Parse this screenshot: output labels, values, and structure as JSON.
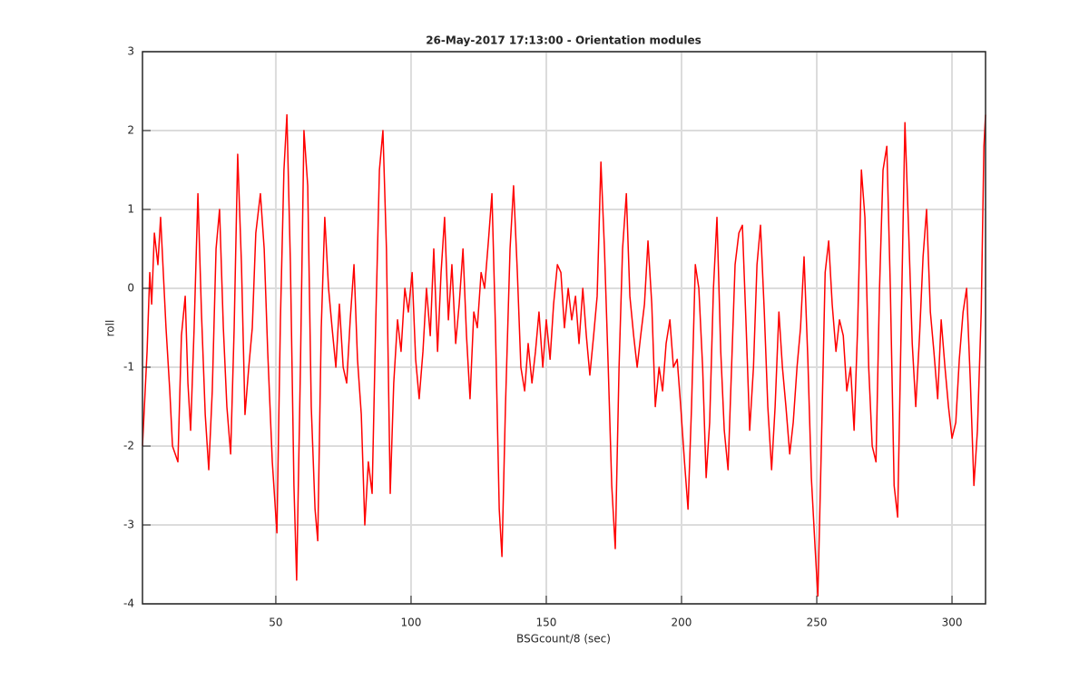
{
  "chart_data": {
    "type": "line",
    "title": "26-May-2017 17:13:00 - Orientation modules",
    "x_label": "BSGcount/8 (sec)",
    "y_label": "roll",
    "xlim": [
      0.7,
      312.4
    ],
    "ylim": [
      -4,
      3
    ],
    "xticks": [
      50,
      100,
      150,
      200,
      250,
      300
    ],
    "yticks": [
      -4,
      -3,
      -2,
      -1,
      0,
      1,
      2,
      3
    ],
    "grid": true,
    "x": [
      0.7,
      2.4,
      3.4,
      4.1,
      5.1,
      6.4,
      7.4,
      8.4,
      9.4,
      10.8,
      11.8,
      13.8,
      15.1,
      16.5,
      17.5,
      18.5,
      19.8,
      21.2,
      22.5,
      23.9,
      25.2,
      26.5,
      27.9,
      29.2,
      30.6,
      31.9,
      33.3,
      34.6,
      35.9,
      37.3,
      38.6,
      40,
      41.3,
      42.6,
      44.3,
      45.7,
      47,
      48.7,
      50.4,
      51.7,
      53,
      54.1,
      55.4,
      56.7,
      57.7,
      59.1,
      60.4,
      61.8,
      63.1,
      64.5,
      65.5,
      66.8,
      68.1,
      69.5,
      70.8,
      72.2,
      73.5,
      74.9,
      76.2,
      77.5,
      78.9,
      80.2,
      81.6,
      82.9,
      84.2,
      85.6,
      86.9,
      88.3,
      89.6,
      90.9,
      92.3,
      93.6,
      95,
      96.3,
      97.7,
      99,
      100.4,
      101.7,
      103,
      104.4,
      105.7,
      107.1,
      108.4,
      109.8,
      111.1,
      112.4,
      113.8,
      115.1,
      116.5,
      117.8,
      119.2,
      120.5,
      121.8,
      123.2,
      124.5,
      125.9,
      127.2,
      128.6,
      129.9,
      131.2,
      132.6,
      133.6,
      134.9,
      136.6,
      137.9,
      139.3,
      140.6,
      142,
      143.3,
      144.7,
      146,
      147.3,
      148.7,
      150,
      151.4,
      152.7,
      154.1,
      155.4,
      156.7,
      158.1,
      159.4,
      160.8,
      162.1,
      163.5,
      164.8,
      166.1,
      167.5,
      168.8,
      170.2,
      171.5,
      172.9,
      174.2,
      175.5,
      176.9,
      178.2,
      179.6,
      180.9,
      182.3,
      183.6,
      184.9,
      186.3,
      187.6,
      189,
      190.3,
      191.7,
      193,
      194.3,
      195.7,
      197,
      198.4,
      199.7,
      201.1,
      202.4,
      203.7,
      205.1,
      206.4,
      207.8,
      209.1,
      210.4,
      211.8,
      213.1,
      214.5,
      215.8,
      217.2,
      218.5,
      219.8,
      221.2,
      222.5,
      223.9,
      225.2,
      226.6,
      227.9,
      229.2,
      230.6,
      231.9,
      233.3,
      234.6,
      236,
      237.3,
      238.6,
      240,
      241.3,
      242.7,
      244,
      245.3,
      246.7,
      248,
      249.4,
      250.4,
      251.7,
      253.1,
      254.4,
      255.7,
      257.1,
      258.4,
      259.8,
      261.1,
      262.5,
      263.8,
      265.1,
      266.5,
      267.8,
      269.2,
      270.5,
      271.9,
      273.2,
      274.5,
      275.9,
      277.2,
      278.6,
      279.9,
      281.2,
      282.6,
      283.9,
      285.3,
      286.6,
      288,
      289.3,
      290.6,
      292,
      293.3,
      294.7,
      296,
      297.4,
      298.7,
      300,
      301.4,
      302.7,
      304.1,
      305.4,
      306.8,
      308.1,
      309.4,
      310.8,
      311.8,
      312.4
    ],
    "series": [
      {
        "name": "roll",
        "color": "#ff0000",
        "values": [
          -2,
          -0.8,
          0.2,
          -0.2,
          0.7,
          0.3,
          0.9,
          0.2,
          -0.5,
          -1.3,
          -2,
          -2.2,
          -0.6,
          -0.1,
          -1.2,
          -1.8,
          -0.5,
          1.2,
          -0.3,
          -1.6,
          -2.3,
          -1.3,
          0.5,
          1,
          -0.5,
          -1.5,
          -2.1,
          -0.5,
          1.7,
          0.3,
          -1.6,
          -1,
          -0.5,
          0.7,
          1.2,
          0.5,
          -0.8,
          -2.2,
          -3.1,
          -0.4,
          1.5,
          2.2,
          0.3,
          -2.5,
          -3.7,
          -1,
          2,
          1.3,
          -1.5,
          -2.8,
          -3.2,
          -0.5,
          0.9,
          0,
          -0.5,
          -1,
          -0.2,
          -1,
          -1.2,
          -0.4,
          0.3,
          -0.9,
          -1.6,
          -3,
          -2.2,
          -2.6,
          -0.5,
          1.5,
          2,
          0.5,
          -2.6,
          -1.2,
          -0.4,
          -0.8,
          0,
          -0.3,
          0.2,
          -0.9,
          -1.4,
          -0.8,
          0,
          -0.6,
          0.5,
          -0.8,
          0.2,
          0.9,
          -0.4,
          0.3,
          -0.7,
          -0.2,
          0.5,
          -0.6,
          -1.4,
          -0.3,
          -0.5,
          0.2,
          0,
          0.6,
          1.2,
          -0.5,
          -2.8,
          -3.4,
          -1.5,
          0.5,
          1.3,
          0.2,
          -1,
          -1.3,
          -0.7,
          -1.2,
          -0.8,
          -0.3,
          -1,
          -0.4,
          -0.9,
          -0.2,
          0.3,
          0.2,
          -0.5,
          0,
          -0.4,
          -0.1,
          -0.7,
          0,
          -0.6,
          -1.1,
          -0.6,
          -0.1,
          1.6,
          0.5,
          -1,
          -2.5,
          -3.3,
          -1,
          0.5,
          1.2,
          -0.1,
          -0.6,
          -1,
          -0.6,
          -0.2,
          0.6,
          -0.2,
          -1.5,
          -1,
          -1.3,
          -0.7,
          -0.4,
          -1,
          -0.9,
          -1.5,
          -2.2,
          -2.8,
          -1.5,
          0.3,
          0,
          -1,
          -2.4,
          -1.7,
          0,
          0.9,
          -0.8,
          -1.8,
          -2.3,
          -1,
          0.3,
          0.7,
          0.8,
          -0.5,
          -1.8,
          -1,
          0.3,
          0.8,
          -0.3,
          -1.5,
          -2.3,
          -1.5,
          -0.3,
          -1,
          -1.5,
          -2.1,
          -1.7,
          -1,
          -0.5,
          0.4,
          -0.9,
          -2.4,
          -3.3,
          -3.9,
          -2,
          0.2,
          0.6,
          -0.2,
          -0.8,
          -0.4,
          -0.6,
          -1.3,
          -1,
          -1.8,
          -0.5,
          1.5,
          0.9,
          -1,
          -2,
          -2.2,
          0,
          1.5,
          1.8,
          0,
          -2.5,
          -2.9,
          -0.5,
          2.1,
          0.8,
          -0.7,
          -1.5,
          -0.6,
          0.4,
          1,
          -0.3,
          -0.8,
          -1.4,
          -0.4,
          -1,
          -1.5,
          -1.9,
          -1.7,
          -0.9,
          -0.3,
          0,
          -1.2,
          -2.5,
          -1.8,
          -0.3,
          1.8,
          2.2
        ]
      }
    ]
  }
}
